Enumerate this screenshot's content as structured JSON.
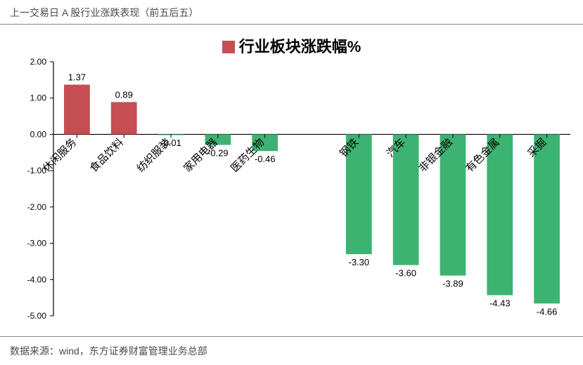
{
  "title": "上一交易日 A 股行业涨跌表现（前五后五）",
  "footer": "数据来源：wind，东方证券财富管理业务总部",
  "legend": {
    "label": "行业板块涨跌幅%",
    "swatch_color": "#c44e52"
  },
  "chart": {
    "type": "bar",
    "background_color": "#ffffff",
    "axis_color": "#000000",
    "tick_font_size": 12,
    "axis_font_color": "#000000",
    "label_font_size": 15,
    "value_font_size": 13,
    "ylim": [
      -5.0,
      2.0
    ],
    "ytick_step": 1.0,
    "ytick_decimals": 2,
    "bar_width_ratio": 0.55,
    "positive_color": "#c44e52",
    "negative_color": "#3cb371",
    "gap_after_index": 4,
    "categories": [
      "休闲服务",
      "食品饮料",
      "纺织服装",
      "家用电器",
      "医药生物",
      "钢铁",
      "汽车",
      "非银金融",
      "有色金属",
      "采掘"
    ],
    "values": [
      1.37,
      0.89,
      -0.01,
      -0.29,
      -0.46,
      -3.3,
      -3.6,
      -3.89,
      -4.43,
      -4.66
    ]
  }
}
